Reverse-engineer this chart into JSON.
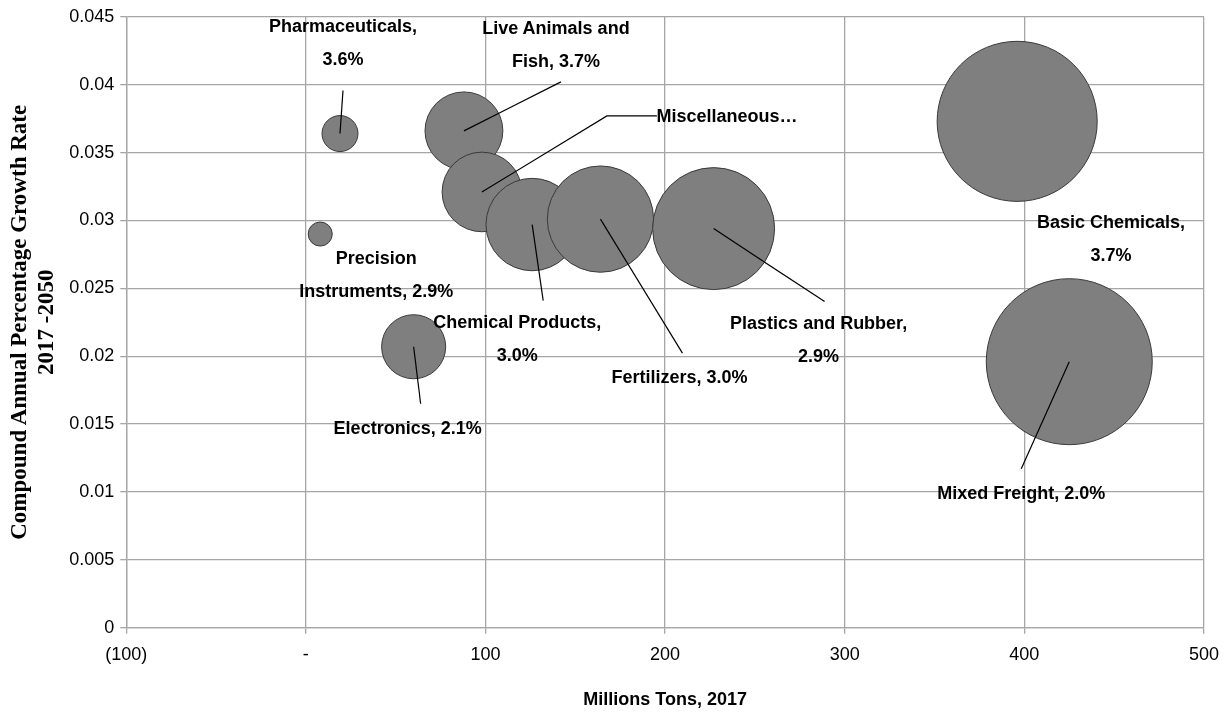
{
  "chart_data": {
    "type": "bubble",
    "xlabel": "Millions Tons, 2017",
    "ylabel": "Compound Annual Percentage Growth Rate 2017 -2050",
    "x": [
      19,
      8,
      88,
      98,
      126,
      164,
      227,
      396,
      60,
      425
    ],
    "values": [
      0.0364,
      0.029,
      0.0366,
      0.0321,
      0.0297,
      0.0301,
      0.0294,
      0.0373,
      0.0207,
      0.0196
    ],
    "sizes": [
      0.047,
      0.021,
      0.22,
      0.23,
      0.31,
      0.41,
      0.54,
      0.93,
      0.149,
      1
    ],
    "color": "#7f7f7f",
    "xlim": [
      -100,
      500
    ],
    "xticks": [
      {
        "value": -100,
        "label": "(100)"
      },
      {
        "value": 0,
        "label": "-"
      },
      100,
      200,
      300,
      400,
      500
    ],
    "ylim": [
      0,
      0.045
    ],
    "yticks": [
      0,
      0.005,
      0.01,
      0.015,
      0.02,
      0.025,
      0.03,
      0.035,
      0.04,
      0.045
    ],
    "grid": true,
    "legend": false,
    "annotations": [
      {
        "text": "Pharmaceuticals, 3.6%",
        "x": 19,
        "y": 0.0364
      },
      {
        "text": "Precision Instruments, 2.9%",
        "x": 8,
        "y": 0.029
      },
      {
        "text": "Live Animals and Fish, 3.7%",
        "x": 88,
        "y": 0.0366
      },
      {
        "text": "Miscellaneous…",
        "x": 98,
        "y": 0.0321
      },
      {
        "text": "Chemical Products, 3.0%",
        "x": 126,
        "y": 0.0297
      },
      {
        "text": "Fertilizers, 3.0%",
        "x": 164,
        "y": 0.0301
      },
      {
        "text": "Plastics and Rubber, 2.9%",
        "x": 227,
        "y": 0.0294
      },
      "Basic Chemicals, 3.7%",
      {
        "text": "Electronics, 2.1%",
        "x": 60,
        "y": 0.0207
      },
      {
        "text": "Mixed Freight, 2.0%",
        "x": 425,
        "y": 0.0196
      }
    ]
  }
}
